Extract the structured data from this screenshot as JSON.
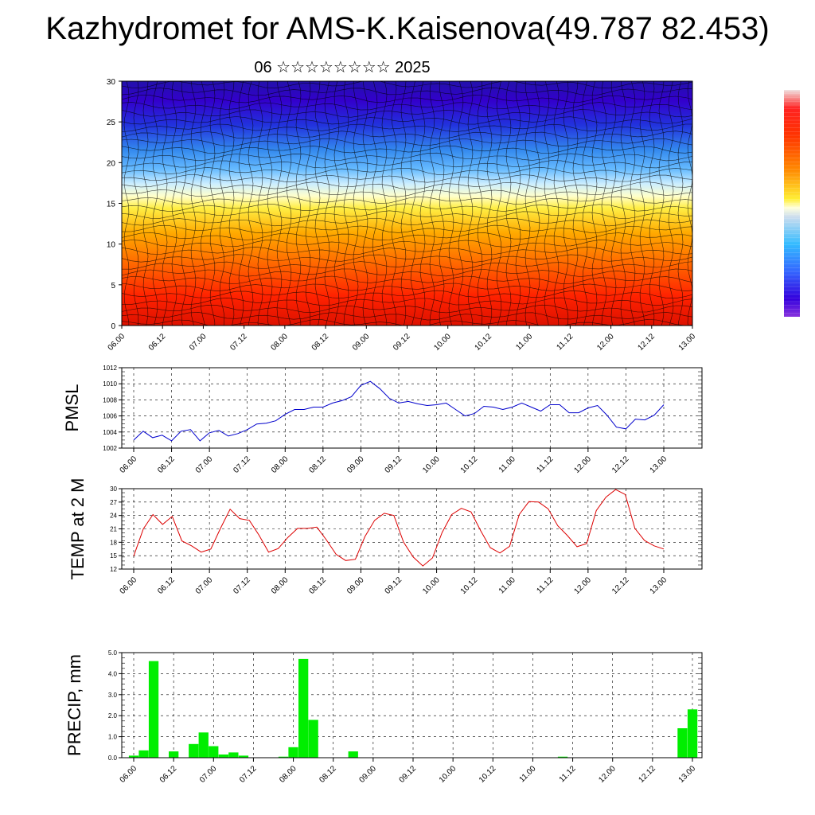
{
  "header": {
    "title": "Kazhydromet for AMS-K.Kaisenova(49.787 82.453)",
    "subtitle": "06 ☆☆☆☆☆☆☆☆ 2025"
  },
  "colors": {
    "pmsl_line": "#0000cc",
    "temp_line": "#dd0000",
    "precip_bar": "#00ee00",
    "colorbar": [
      "#e0e0e0",
      "#ff0000",
      "#ff7700",
      "#ffdd00",
      "#ffffdd",
      "#aaddff",
      "#33bbff",
      "#3355ee",
      "#3300cc",
      "#8800cc"
    ]
  },
  "chart_data": [
    {
      "type": "heatmap",
      "title": "",
      "ylim": [
        0,
        30
      ],
      "yticks": [
        "0",
        "5",
        "10",
        "15",
        "20",
        "25",
        "30"
      ],
      "xticks": [
        "06.00",
        "06.12",
        "07.00",
        "07.12",
        "08.00",
        "08.12",
        "09.00",
        "09.12",
        "10.00",
        "10.12",
        "11.00",
        "11.12",
        "12.00",
        "12.12",
        "13.00"
      ]
    },
    {
      "type": "line",
      "ylabel": "PMSL",
      "ylim": [
        1002,
        1012
      ],
      "yticks": [
        "1002",
        "1004",
        "1006",
        "1008",
        "1010",
        "1012"
      ],
      "xticks": [
        "06.00",
        "06.12",
        "07.00",
        "07.12",
        "08.00",
        "08.12",
        "09.00",
        "09.12",
        "10.00",
        "10.12",
        "11.00",
        "11.12",
        "12.00",
        "12.12",
        "13.00"
      ],
      "values": [
        1003.0,
        1004.1,
        1003.3,
        1003.6,
        1002.9,
        1004.1,
        1004.3,
        1002.9,
        1003.9,
        1004.2,
        1003.5,
        1003.8,
        1004.3,
        1005.0,
        1005.1,
        1005.4,
        1006.2,
        1006.8,
        1006.8,
        1007.1,
        1007.1,
        1007.6,
        1007.9,
        1008.4,
        1009.8,
        1010.3,
        1009.4,
        1008.2,
        1007.6,
        1007.8,
        1007.5,
        1007.3,
        1007.4,
        1007.6,
        1006.8,
        1006.0,
        1006.3,
        1007.2,
        1007.1,
        1006.8,
        1007.1,
        1007.6,
        1007.1,
        1006.6,
        1007.4,
        1007.4,
        1006.4,
        1006.4,
        1007.0,
        1007.3,
        1006.1,
        1004.6,
        1004.4,
        1005.6,
        1005.5,
        1006.1,
        1007.4
      ]
    },
    {
      "type": "line",
      "ylabel": "TEMP at 2 M",
      "ylim": [
        12,
        30
      ],
      "yticks": [
        "12",
        "15",
        "18",
        "21",
        "24",
        "27",
        "30"
      ],
      "xticks": [
        "06.00",
        "06.12",
        "07.00",
        "07.12",
        "08.00",
        "08.12",
        "09.00",
        "09.12",
        "10.00",
        "10.12",
        "11.00",
        "11.12",
        "12.00",
        "12.12",
        "13.00"
      ],
      "values": [
        14.9,
        21.0,
        24.2,
        22.0,
        23.8,
        18.3,
        17.2,
        15.8,
        16.5,
        21.1,
        25.4,
        23.3,
        22.9,
        19.6,
        15.8,
        16.6,
        19.1,
        21.1,
        21.1,
        21.4,
        18.5,
        15.3,
        13.9,
        14.2,
        19.3,
        22.9,
        24.5,
        24.0,
        18.0,
        14.7,
        12.7,
        14.5,
        20.2,
        24.2,
        25.6,
        24.8,
        20.6,
        16.8,
        15.6,
        17.1,
        24.2,
        27.1,
        27.0,
        25.5,
        21.7,
        19.5,
        17.0,
        17.7,
        25.1,
        28.1,
        29.8,
        28.7,
        21.1,
        18.4,
        17.2,
        16.5
      ]
    },
    {
      "type": "bar",
      "ylabel": "PRECIP, mm",
      "ylim": [
        0,
        5
      ],
      "yticks": [
        "0.0",
        "1.0",
        "2.0",
        "3.0",
        "4.0",
        "5.0"
      ],
      "xticks": [
        "06.00",
        "06.12",
        "07.00",
        "07.12",
        "08.00",
        "08.12",
        "09.00",
        "09.12",
        "10.00",
        "10.12",
        "11.00",
        "11.12",
        "12.00",
        "12.12",
        "13.00"
      ],
      "values": [
        0.1,
        0.35,
        4.6,
        0.0,
        0.3,
        0.0,
        0.65,
        1.2,
        0.55,
        0.15,
        0.25,
        0.1,
        0.0,
        0.0,
        0.0,
        0.05,
        0.5,
        4.7,
        1.8,
        0.0,
        0.0,
        0.0,
        0.3,
        0.0,
        0.0,
        0.0,
        0.0,
        0.0,
        0.0,
        0.0,
        0.0,
        0.0,
        0.0,
        0.0,
        0.0,
        0.0,
        0.0,
        0.0,
        0.0,
        0.0,
        0.0,
        0.0,
        0.0,
        0.05,
        0.0,
        0.0,
        0.0,
        0.0,
        0.0,
        0.0,
        0.0,
        0.0,
        0.0,
        0.0,
        0.0,
        1.4,
        2.3
      ]
    }
  ]
}
